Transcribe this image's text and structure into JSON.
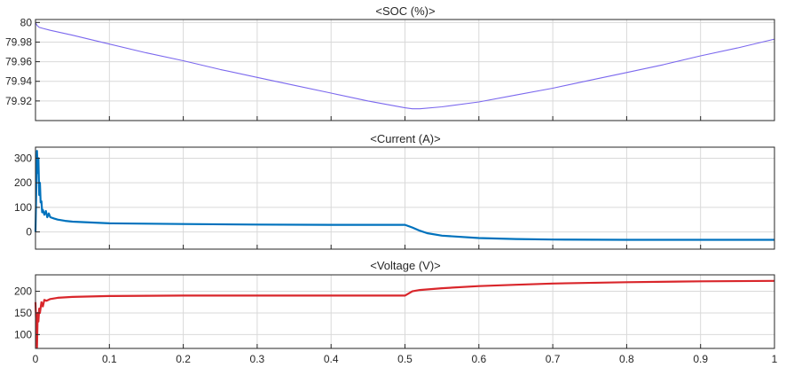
{
  "chart_data": [
    {
      "type": "line",
      "title": "<SOC (%)>",
      "xlabel": "",
      "ylabel": "",
      "xlim": [
        0,
        1
      ],
      "ylim": [
        79.9,
        80.003
      ],
      "yticks": [
        80,
        79.98,
        79.96,
        79.94,
        79.92
      ],
      "ytick_labels": [
        "80",
        "79.98",
        "79.96",
        "79.94",
        "79.92"
      ],
      "grid": true,
      "series": [
        {
          "color": "#7b68ee",
          "x": [
            0,
            0.002,
            0.005,
            0.01,
            0.02,
            0.05,
            0.1,
            0.15,
            0.2,
            0.25,
            0.3,
            0.35,
            0.4,
            0.45,
            0.5,
            0.51,
            0.52,
            0.55,
            0.6,
            0.65,
            0.7,
            0.75,
            0.8,
            0.85,
            0.9,
            0.95,
            1.0
          ],
          "y": [
            80.0,
            79.997,
            79.995,
            79.994,
            79.992,
            79.987,
            79.978,
            79.969,
            79.961,
            79.952,
            79.944,
            79.936,
            79.928,
            79.92,
            79.913,
            79.912,
            79.912,
            79.914,
            79.919,
            79.926,
            79.933,
            79.941,
            79.949,
            79.957,
            79.966,
            79.974,
            79.983
          ]
        }
      ]
    },
    {
      "type": "line",
      "title": "<Current (A)>",
      "xlabel": "",
      "ylabel": "",
      "xlim": [
        0,
        1
      ],
      "ylim": [
        -70,
        345
      ],
      "yticks": [
        300,
        200,
        100,
        0
      ],
      "ytick_labels": [
        "300",
        "200",
        "100",
        "0"
      ],
      "grid": true,
      "series": [
        {
          "color": "#0072bd",
          "x": [
            0,
            0.002,
            0.003,
            0.004,
            0.005,
            0.006,
            0.007,
            0.008,
            0.009,
            0.01,
            0.012,
            0.014,
            0.016,
            0.018,
            0.02,
            0.025,
            0.03,
            0.04,
            0.05,
            0.1,
            0.2,
            0.3,
            0.4,
            0.49,
            0.5,
            0.51,
            0.52,
            0.53,
            0.55,
            0.6,
            0.65,
            0.7,
            0.8,
            0.9,
            1.0
          ],
          "y": [
            0,
            330,
            240,
            300,
            150,
            200,
            120,
            125,
            80,
            90,
            70,
            85,
            60,
            75,
            60,
            55,
            50,
            45,
            42,
            35,
            32,
            30,
            29,
            29,
            29,
            18,
            5,
            -5,
            -15,
            -25,
            -29,
            -31,
            -32,
            -32,
            -32
          ]
        }
      ]
    },
    {
      "type": "line",
      "title": "<Voltage (V)>",
      "xlabel": "",
      "ylabel": "",
      "xlim": [
        0,
        1
      ],
      "ylim": [
        68,
        238
      ],
      "yticks": [
        200,
        150,
        100
      ],
      "ytick_labels": [
        "200",
        "150",
        "100"
      ],
      "xticks": [
        0,
        0.1,
        0.2,
        0.3,
        0.4,
        0.5,
        0.6,
        0.7,
        0.8,
        0.9,
        1
      ],
      "xtick_labels": [
        "0",
        "0.1",
        "0.2",
        "0.3",
        "0.4",
        "0.5",
        "0.6",
        "0.7",
        "0.8",
        "0.9",
        "1"
      ],
      "grid": true,
      "series": [
        {
          "color": "#d9262b",
          "x": [
            0,
            0.002,
            0.003,
            0.004,
            0.005,
            0.006,
            0.008,
            0.01,
            0.012,
            0.015,
            0.02,
            0.03,
            0.05,
            0.1,
            0.2,
            0.3,
            0.4,
            0.49,
            0.5,
            0.51,
            0.52,
            0.55,
            0.6,
            0.65,
            0.7,
            0.8,
            0.9,
            1.0
          ],
          "y": [
            175,
            70,
            150,
            130,
            160,
            150,
            175,
            165,
            180,
            178,
            182,
            185,
            187,
            189,
            190,
            190,
            190,
            190,
            190,
            200,
            203,
            207,
            212,
            215,
            218,
            221,
            223,
            224
          ]
        }
      ]
    }
  ]
}
